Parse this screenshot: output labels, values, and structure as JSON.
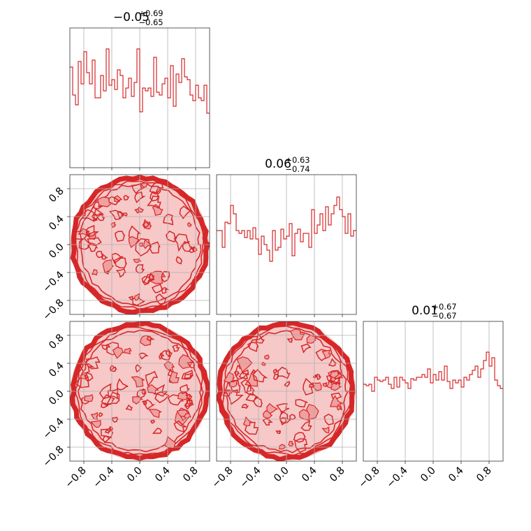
{
  "figure": {
    "titles": [
      {
        "value": "−0.05",
        "sup": "+0.69",
        "sub": "−0.65"
      },
      {
        "value": "0.06",
        "sup": "+0.63",
        "sub": "−0.74"
      },
      {
        "value": "0.01",
        "sup": "+0.67",
        "sub": "−0.67"
      }
    ],
    "colors": {
      "line": "#d62728",
      "fill": "#f3b6b6",
      "grid": "#b0b0b0"
    }
  },
  "chart_data": {
    "type": "corner",
    "range": [
      -1.0,
      1.0
    ],
    "ticks": [
      -0.8,
      -0.4,
      0.0,
      0.4,
      0.8
    ],
    "tick_labels": [
      "−0.8",
      "−0.4",
      "0.0",
      "0.4",
      "0.8"
    ],
    "bins": 50,
    "histograms": [
      {
        "param": 0,
        "heights": [
          0.72,
          0.52,
          0.45,
          0.76,
          0.6,
          0.83,
          0.68,
          0.6,
          0.77,
          0.5,
          0.5,
          0.66,
          0.55,
          0.85,
          0.59,
          0.63,
          0.56,
          0.7,
          0.66,
          0.5,
          0.57,
          0.64,
          0.51,
          0.61,
          0.85,
          0.4,
          0.57,
          0.55,
          0.57,
          0.51,
          0.79,
          0.54,
          0.52,
          0.6,
          0.64,
          0.5,
          0.73,
          0.44,
          0.67,
          0.61,
          0.78,
          0.65,
          0.63,
          0.52,
          0.48,
          0.59,
          0.5,
          0.48,
          0.59,
          0.39
        ]
      },
      {
        "param": 1,
        "heights": [
          0.6,
          0.6,
          0.48,
          0.66,
          0.65,
          0.78,
          0.72,
          0.6,
          0.58,
          0.6,
          0.55,
          0.6,
          0.54,
          0.62,
          0.54,
          0.43,
          0.56,
          0.5,
          0.46,
          0.38,
          0.6,
          0.46,
          0.48,
          0.61,
          0.54,
          0.56,
          0.65,
          0.42,
          0.58,
          0.61,
          0.52,
          0.58,
          0.58,
          0.48,
          0.75,
          0.58,
          0.64,
          0.72,
          0.6,
          0.77,
          0.64,
          0.72,
          0.78,
          0.84,
          0.75,
          0.7,
          0.58,
          0.72,
          0.56,
          0.6
        ]
      },
      {
        "param": 2,
        "heights": [
          0.55,
          0.54,
          0.55,
          0.5,
          0.6,
          0.58,
          0.57,
          0.58,
          0.6,
          0.55,
          0.52,
          0.6,
          0.53,
          0.6,
          0.58,
          0.56,
          0.52,
          0.59,
          0.58,
          0.6,
          0.6,
          0.62,
          0.6,
          0.66,
          0.56,
          0.62,
          0.58,
          0.64,
          0.58,
          0.68,
          0.57,
          0.52,
          0.58,
          0.56,
          0.58,
          0.53,
          0.6,
          0.58,
          0.62,
          0.65,
          0.68,
          0.6,
          0.66,
          0.72,
          0.78,
          0.68,
          0.74,
          0.58,
          0.54,
          0.52
        ]
      }
    ],
    "pair_panels": [
      {
        "x_param": 0,
        "y_param": 1,
        "support": "unit-disc"
      },
      {
        "x_param": 0,
        "y_param": 2,
        "support": "unit-disc"
      },
      {
        "x_param": 1,
        "y_param": 2,
        "support": "unit-disc"
      }
    ],
    "grid": true
  }
}
